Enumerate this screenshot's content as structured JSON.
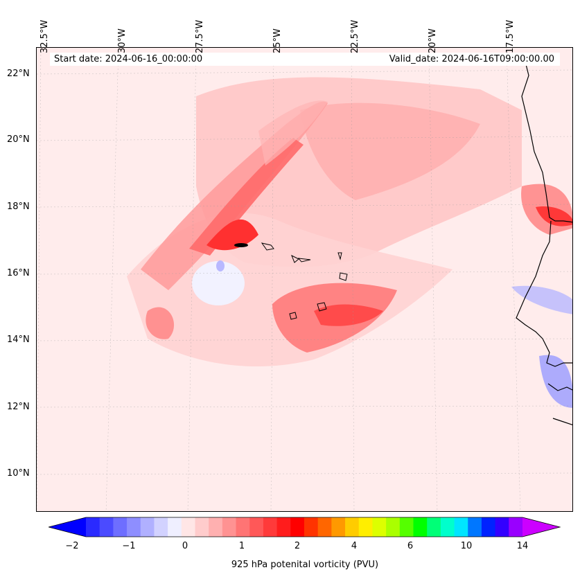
{
  "map": {
    "start_date": "Start date: 2024-06-16_00:00:00",
    "valid_date": "Valid_date: 2024-06-16T09:00:00.00",
    "longitude_labels": [
      "32.5°W",
      "30°W",
      "27.5°W",
      "25°W",
      "22.5°W",
      "20°W",
      "17.5°W"
    ],
    "latitude_labels": [
      "22°N",
      "20°N",
      "18°N",
      "16°N",
      "14°N",
      "12°N",
      "10°N"
    ]
  },
  "colorbar": {
    "title": "925 hPa potenital vorticity (PVU)",
    "tick_labels": [
      "−2",
      "−1",
      "0",
      "1",
      "2",
      "4",
      "6",
      "10",
      "14"
    ],
    "colors": [
      "#0000ff",
      "#2a2aff",
      "#4b4bff",
      "#6e6eff",
      "#8e8eff",
      "#b0b0ff",
      "#d2d2ff",
      "#efefff",
      "#ffe6e6",
      "#ffcccc",
      "#ffb0b0",
      "#ff9292",
      "#ff7474",
      "#ff5858",
      "#ff3a3a",
      "#ff1c1c",
      "#ff0000",
      "#ff3300",
      "#ff6600",
      "#ff9900",
      "#ffcc00",
      "#ffee00",
      "#ddff00",
      "#aaff00",
      "#55ff00",
      "#00ff00",
      "#00ff77",
      "#00ffcc",
      "#00e5ff",
      "#0077ff",
      "#0022ff",
      "#3300ff",
      "#9900ff",
      "#cc00ff"
    ]
  }
}
